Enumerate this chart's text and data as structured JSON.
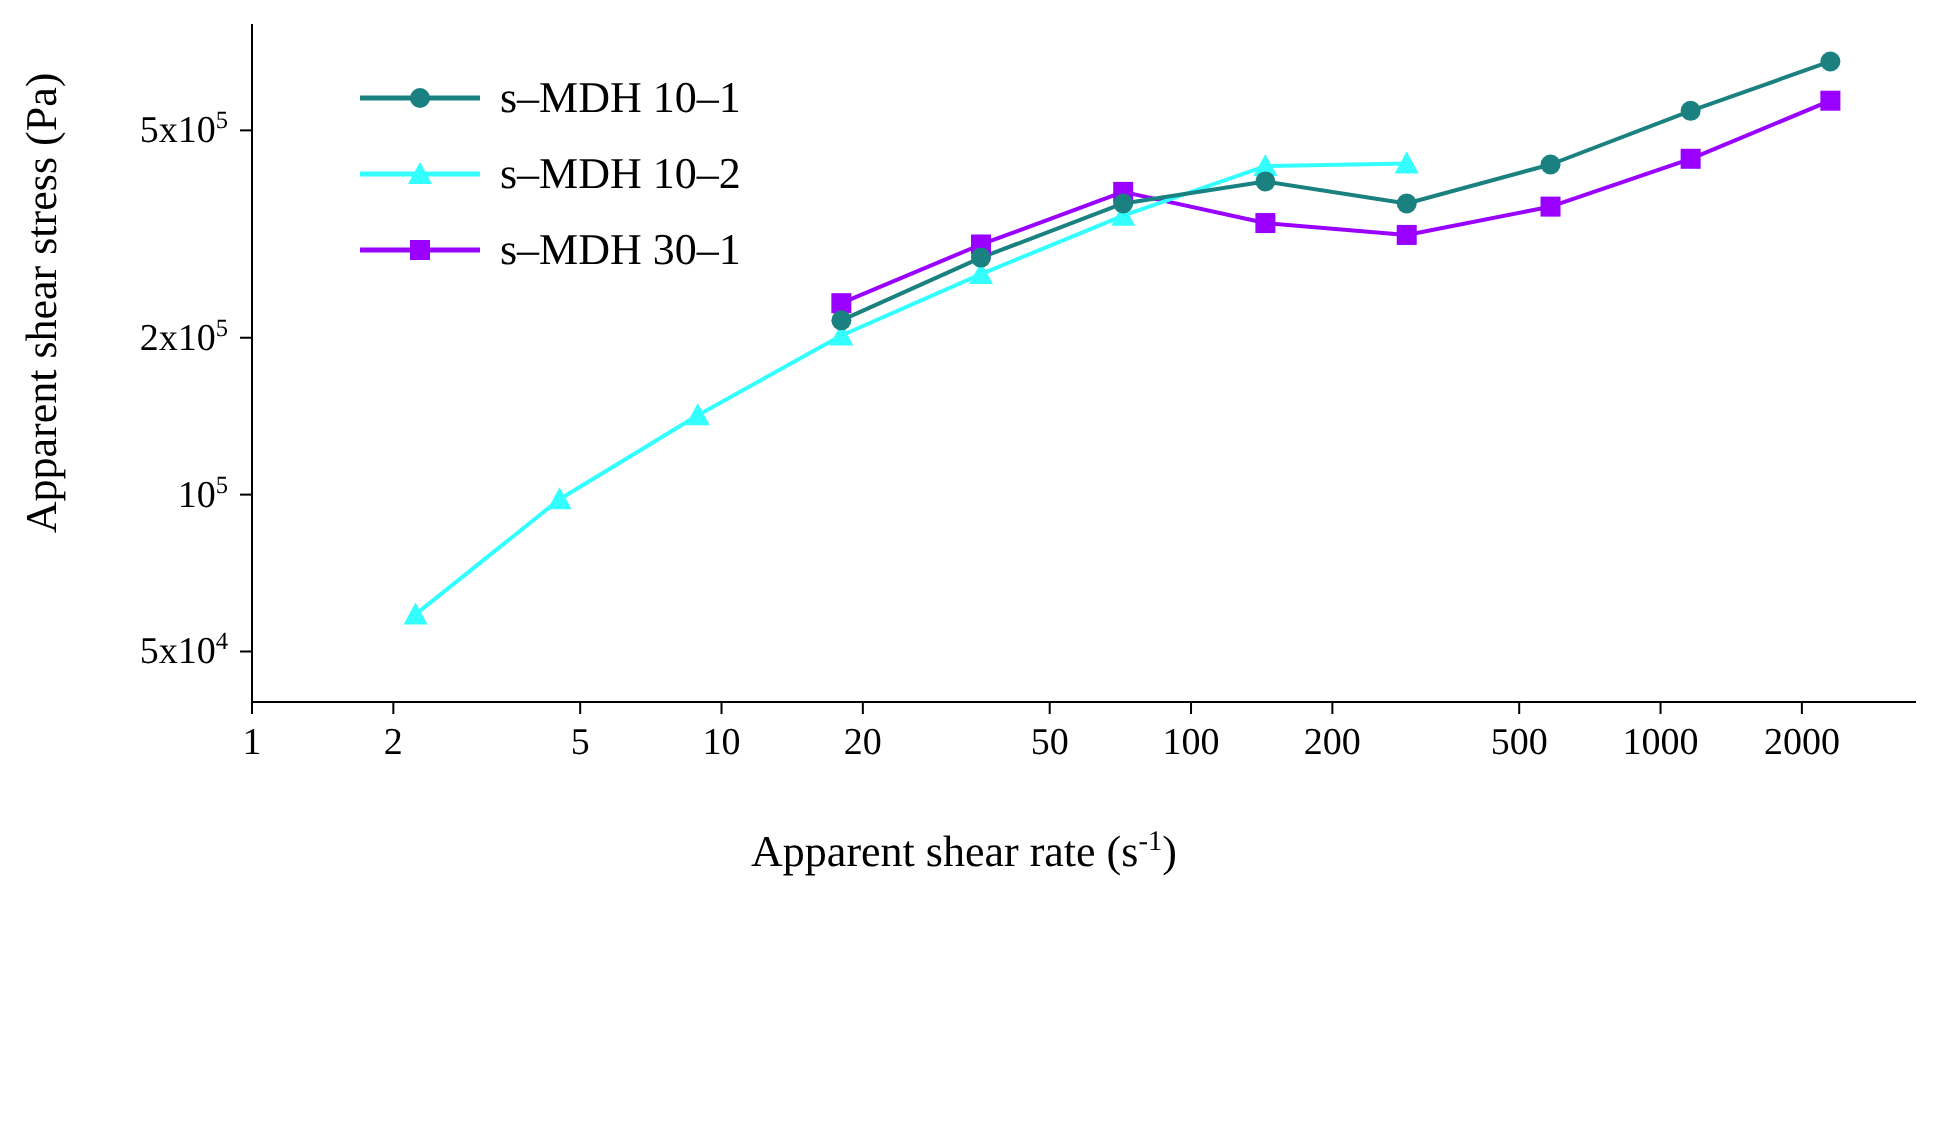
{
  "chart_data": {
    "type": "line",
    "xlabel": "Apparent shear rate (s$^{-1}$)",
    "ylabel": "Apparent shear stress (Pa)",
    "log": "xy",
    "xlim": [
      1,
      3500
    ],
    "xticks": [
      1,
      2,
      5,
      10,
      20,
      50,
      100,
      200,
      500,
      1000,
      2000
    ],
    "ylim": [
      40000,
      800000
    ],
    "yticks": [
      {
        "value": 50000,
        "label": "5x10$^{4}$"
      },
      {
        "value": 100000,
        "label": "10$^{5}$"
      },
      {
        "value": 200000,
        "label": "2x10$^{5}$"
      },
      {
        "value": 500000,
        "label": "5x10$^{5}$"
      }
    ],
    "grid": false,
    "legend": "top left",
    "line_style": "solid",
    "series": [
      {
        "name": "s–MDH 10–1",
        "color": "#1a8080",
        "marker": "circle",
        "x": [
          18,
          35.7,
          71.7,
          144,
          288,
          583,
          1159,
          2300
        ],
        "values": [
          216000,
          285000,
          362000,
          399000,
          362000,
          430000,
          545000,
          678000
        ]
      },
      {
        "name": "s–MDH 10–2",
        "color": "#33ffff",
        "marker": "triangle",
        "x": [
          2.23,
          4.52,
          8.9,
          18,
          35.7,
          71.7,
          144,
          288
        ],
        "values": [
          58900,
          98000,
          142000,
          202000,
          265000,
          343000,
          427000,
          432000
        ]
      },
      {
        "name": "s–MDH 30–1",
        "color": "#9900ff",
        "marker": "square",
        "x": [
          18,
          35.7,
          71.7,
          144,
          288,
          583,
          1159,
          2300
        ],
        "values": [
          233000,
          302000,
          381000,
          332000,
          315000,
          357000,
          441000,
          570000
        ]
      }
    ]
  }
}
